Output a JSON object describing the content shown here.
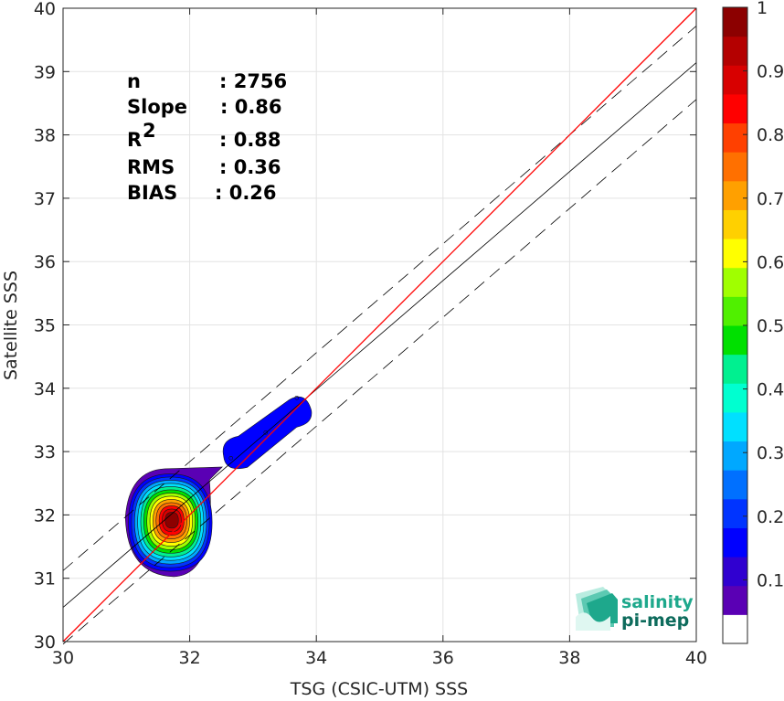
{
  "chart_data": {
    "type": "scatter",
    "subtype": "density-contour",
    "xlabel": "TSG (CSIC-UTM) SSS",
    "ylabel": "Satellite SSS",
    "xlim": [
      30,
      40
    ],
    "ylim": [
      30,
      40
    ],
    "xticks": [
      "30",
      "32",
      "34",
      "36",
      "38",
      "40"
    ],
    "yticks": [
      "30",
      "31",
      "32",
      "33",
      "34",
      "35",
      "36",
      "37",
      "38",
      "39",
      "40"
    ],
    "grid": true,
    "stats": [
      {
        "label": "n",
        "value": ": 2756"
      },
      {
        "label": "Slope",
        "value": ": 0.86"
      },
      {
        "label": "R",
        "sup": "2",
        "value": ": 0.88"
      },
      {
        "label": "RMS",
        "value": ": 0.36"
      },
      {
        "label": "BIAS",
        "value": ": 0.26"
      }
    ],
    "lines": {
      "one_to_one": {
        "x": [
          30,
          40
        ],
        "y": [
          30,
          40
        ],
        "color": "#ff0000"
      },
      "fit": {
        "x": [
          30,
          40
        ],
        "y": [
          30.54,
          39.14
        ],
        "color": "#000000"
      },
      "fit_upper": {
        "x": [
          30,
          40
        ],
        "y": [
          31.12,
          39.72
        ],
        "style": "dashed"
      },
      "fit_lower": {
        "x": [
          30,
          40
        ],
        "y": [
          29.96,
          38.56
        ],
        "style": "dashed"
      }
    },
    "density_peaks": [
      {
        "x": 31.72,
        "y": 31.92,
        "level": 1.0
      },
      {
        "x": 33.2,
        "y": 33.3,
        "level": 0.1
      }
    ],
    "colorbar": {
      "ticks": [
        "0.1",
        "0.2",
        "0.3",
        "0.4",
        "0.5",
        "0.6",
        "0.7",
        "0.8",
        "0.9",
        "1"
      ],
      "range": [
        0,
        1
      ],
      "colors": [
        "#ffffff",
        "#5a00b4",
        "#3000d0",
        "#0000ff",
        "#0034ff",
        "#0070ff",
        "#00a8ff",
        "#00e0ff",
        "#00ffd0",
        "#00f090",
        "#00e000",
        "#50f000",
        "#a0ff00",
        "#ffff00",
        "#ffd000",
        "#ffa000",
        "#ff7000",
        "#ff4000",
        "#ff0000",
        "#d80000",
        "#b40000",
        "#8c0000"
      ]
    }
  },
  "logo": {
    "line1": "salinity",
    "line2": "pi-mep"
  }
}
